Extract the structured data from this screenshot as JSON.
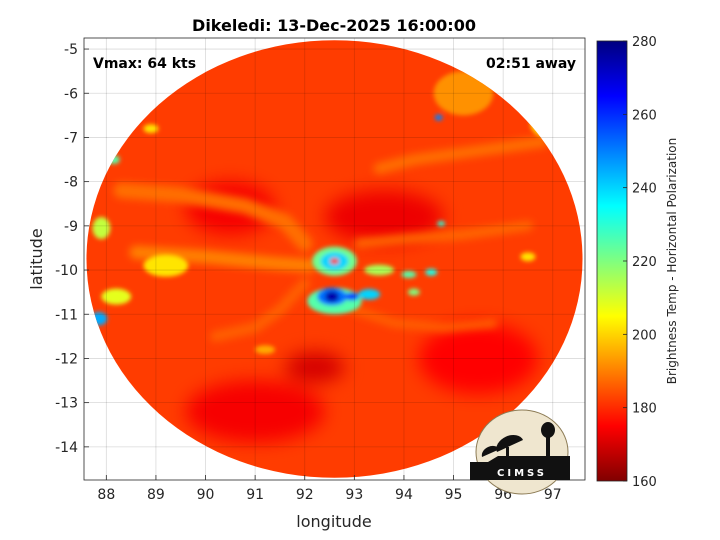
{
  "chart_data": {
    "type": "heatmap",
    "title": "Dikeledi: 13-Dec-2025 16:00:00",
    "xlabel": "longitude",
    "ylabel": "latitude",
    "xlim": [
      87.55,
      97.65
    ],
    "ylim": [
      -14.75,
      -4.75
    ],
    "x_ticks": [
      88,
      89,
      90,
      91,
      92,
      93,
      94,
      95,
      96,
      97
    ],
    "y_ticks": [
      -5,
      -6,
      -7,
      -8,
      -9,
      -10,
      -11,
      -12,
      -13,
      -14
    ],
    "grid": true,
    "annotations": {
      "vmax": "Vmax: 64 kts",
      "time_offset": "02:51 away"
    },
    "storm_center": {
      "lon": 92.6,
      "lat": -9.8
    },
    "colorbar": {
      "label": "Brightness Temp - Horizontal Polarization",
      "min": 160,
      "max": 280,
      "ticks": [
        160,
        180,
        200,
        220,
        240,
        260,
        280
      ],
      "colormap": "jet"
    },
    "swath": {
      "center_lon": 92.6,
      "center_lat": -9.75,
      "radius_lon": 5.0,
      "radius_lat": 4.95
    },
    "features": [
      {
        "kind": "eyewall-ring",
        "lon": 92.6,
        "lat": -9.8,
        "rx": 0.45,
        "ry": 0.33,
        "value": 218
      },
      {
        "kind": "eyewall-inner",
        "lon": 92.6,
        "lat": -9.8,
        "rx": 0.28,
        "ry": 0.2,
        "value": 200
      },
      {
        "kind": "eye",
        "lon": 92.6,
        "lat": -9.8,
        "rx": 0.09,
        "ry": 0.07,
        "value": 262
      },
      {
        "kind": "rainband",
        "lon": 92.6,
        "lat": -10.7,
        "rx": 0.55,
        "ry": 0.3,
        "value": 215
      },
      {
        "kind": "rainband",
        "lon": 92.55,
        "lat": -10.6,
        "rx": 0.3,
        "ry": 0.2,
        "value": 188
      },
      {
        "kind": "core",
        "lon": 92.55,
        "lat": -10.6,
        "rx": 0.14,
        "ry": 0.12,
        "value": 165
      },
      {
        "kind": "cell",
        "lon": 92.95,
        "lat": -10.6,
        "rx": 0.14,
        "ry": 0.09,
        "value": 182
      },
      {
        "kind": "cell",
        "lon": 93.3,
        "lat": -10.55,
        "rx": 0.22,
        "ry": 0.12,
        "value": 200
      },
      {
        "kind": "cell",
        "lon": 93.5,
        "lat": -10.0,
        "rx": 0.3,
        "ry": 0.12,
        "value": 225
      },
      {
        "kind": "cell",
        "lon": 94.1,
        "lat": -10.1,
        "rx": 0.15,
        "ry": 0.08,
        "value": 215
      },
      {
        "kind": "cell",
        "lon": 94.55,
        "lat": -10.05,
        "rx": 0.12,
        "ry": 0.08,
        "value": 208
      },
      {
        "kind": "cell",
        "lon": 94.2,
        "lat": -10.5,
        "rx": 0.12,
        "ry": 0.08,
        "value": 220
      },
      {
        "kind": "cell",
        "lon": 94.7,
        "lat": -6.55,
        "rx": 0.08,
        "ry": 0.07,
        "value": 190
      },
      {
        "kind": "cell",
        "lon": 94.75,
        "lat": -8.95,
        "rx": 0.08,
        "ry": 0.06,
        "value": 210
      },
      {
        "kind": "cell",
        "lon": 87.85,
        "lat": -11.1,
        "rx": 0.17,
        "ry": 0.15,
        "value": 195
      },
      {
        "kind": "cell",
        "lon": 88.15,
        "lat": -7.5,
        "rx": 0.12,
        "ry": 0.1,
        "value": 215
      },
      {
        "kind": "cell",
        "lon": 88.2,
        "lat": -10.6,
        "rx": 0.3,
        "ry": 0.18,
        "value": 232
      },
      {
        "kind": "cell",
        "lon": 87.9,
        "lat": -9.05,
        "rx": 0.18,
        "ry": 0.25,
        "value": 228
      },
      {
        "kind": "cell",
        "lon": 89.2,
        "lat": -9.9,
        "rx": 0.45,
        "ry": 0.25,
        "value": 238
      },
      {
        "kind": "cell",
        "lon": 96.9,
        "lat": -6.7,
        "rx": 0.35,
        "ry": 0.3,
        "value": 240
      },
      {
        "kind": "cell",
        "lon": 95.2,
        "lat": -6.0,
        "rx": 0.6,
        "ry": 0.5,
        "value": 248
      },
      {
        "kind": "cell",
        "lon": 96.5,
        "lat": -9.7,
        "rx": 0.15,
        "ry": 0.1,
        "value": 238
      },
      {
        "kind": "cell",
        "lon": 88.9,
        "lat": -6.8,
        "rx": 0.15,
        "ry": 0.1,
        "value": 238
      },
      {
        "kind": "cell",
        "lon": 91.2,
        "lat": -11.8,
        "rx": 0.2,
        "ry": 0.1,
        "value": 245
      },
      {
        "kind": "cold-patch",
        "lon": 92.2,
        "lat": -12.2,
        "rx": 0.6,
        "ry": 0.35,
        "value": 270
      },
      {
        "kind": "cold-patch",
        "lon": 93.6,
        "lat": -8.8,
        "rx": 1.2,
        "ry": 0.6,
        "value": 267
      },
      {
        "kind": "cold-patch",
        "lon": 90.5,
        "lat": -8.6,
        "rx": 0.9,
        "ry": 0.6,
        "value": 266
      },
      {
        "kind": "cold-patch",
        "lon": 95.5,
        "lat": -12.0,
        "rx": 1.2,
        "ry": 0.8,
        "value": 265
      },
      {
        "kind": "cold-patch",
        "lon": 91.0,
        "lat": -13.2,
        "rx": 1.4,
        "ry": 0.7,
        "value": 266
      }
    ],
    "arcs": [
      {
        "points": [
          [
            88.3,
            -8.2
          ],
          [
            89.5,
            -8.3
          ],
          [
            90.8,
            -8.55
          ],
          [
            91.6,
            -8.9
          ],
          [
            92.0,
            -9.4
          ]
        ],
        "width": 0.35,
        "value": 252
      },
      {
        "points": [
          [
            88.6,
            -9.6
          ],
          [
            90.0,
            -9.7
          ],
          [
            91.4,
            -9.85
          ],
          [
            92.1,
            -9.9
          ]
        ],
        "width": 0.3,
        "value": 250
      },
      {
        "points": [
          [
            93.1,
            -9.4
          ],
          [
            94.0,
            -9.3
          ],
          [
            95.2,
            -9.2
          ],
          [
            96.5,
            -9.0
          ]
        ],
        "width": 0.22,
        "value": 253
      },
      {
        "points": [
          [
            92.0,
            -10.3
          ],
          [
            91.5,
            -10.9
          ],
          [
            91.0,
            -11.3
          ],
          [
            90.2,
            -11.5
          ]
        ],
        "width": 0.25,
        "value": 254
      },
      {
        "points": [
          [
            93.0,
            -10.9
          ],
          [
            93.8,
            -11.2
          ],
          [
            94.8,
            -11.3
          ],
          [
            95.8,
            -11.2
          ]
        ],
        "width": 0.2,
        "value": 254
      },
      {
        "points": [
          [
            93.5,
            -7.7
          ],
          [
            94.2,
            -7.5
          ],
          [
            95.5,
            -7.3
          ],
          [
            96.8,
            -7.1
          ]
        ],
        "width": 0.25,
        "value": 252
      }
    ],
    "logo_text": "CIMSS"
  }
}
